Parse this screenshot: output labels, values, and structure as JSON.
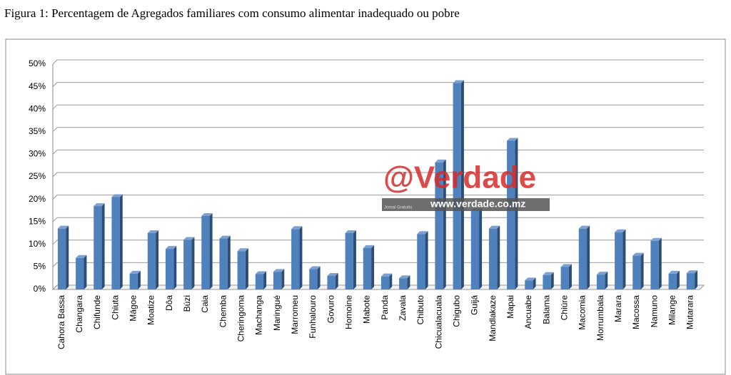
{
  "chart_data": {
    "type": "bar",
    "title": "Figura 1: Percentagem de Agregados familiares com consumo alimentar inadequado ou pobre",
    "categories": [
      "Cahora Bassa",
      "Changara",
      "Chifunde",
      "Chiuta",
      "Mágoe",
      "Moatize",
      "Dôa",
      "Búzi",
      "Caia",
      "Chemba",
      "Cheringoma",
      "Machanga",
      "Maringué",
      "Marromeu",
      "Funhalouro",
      "Govuro",
      "Homoine",
      "Mabote",
      "Panda",
      "Zavala",
      "Chibuto",
      "Chicualacuala",
      "Chigubo",
      "Guijá",
      "Mandlakaze",
      "Mapai",
      "Ancuabe",
      "Balama",
      "Chiúre",
      "Macomia",
      "Morrumbala",
      "Marara",
      "Macossa",
      "Namuno",
      "Milange",
      "Mutarara"
    ],
    "values": [
      13.5,
      7,
      18.5,
      20.5,
      3.5,
      12.5,
      9,
      11,
      16.3,
      11.3,
      8.5,
      3.4,
      3.9,
      13.4,
      4.5,
      3,
      12.5,
      9.2,
      2.9,
      2.5,
      12.3,
      28.2,
      45.8,
      17.4,
      13.5,
      33,
      2,
      3.2,
      5,
      13.5,
      3.3,
      12.7,
      7.5,
      10.8,
      3.5,
      3.6
    ],
    "color": "#4f81bd",
    "ylim": [
      0,
      50
    ],
    "yticks": [
      {
        "value": 0,
        "label": "0%"
      },
      {
        "value": 5,
        "label": "5%"
      },
      {
        "value": 10,
        "label": "10%"
      },
      {
        "value": 15,
        "label": "15%"
      },
      {
        "value": 20,
        "label": "20%"
      },
      {
        "value": 25,
        "label": "25%"
      },
      {
        "value": 30,
        "label": "30%"
      },
      {
        "value": 35,
        "label": "35%"
      },
      {
        "value": 40,
        "label": "40%"
      },
      {
        "value": 45,
        "label": "45%"
      },
      {
        "value": 50,
        "label": "50%"
      }
    ],
    "grid": true,
    "watermark": {
      "brand": "@Verdade",
      "url": "www.verdade.co.mz",
      "tagline": "Jornal Gratuito"
    }
  }
}
